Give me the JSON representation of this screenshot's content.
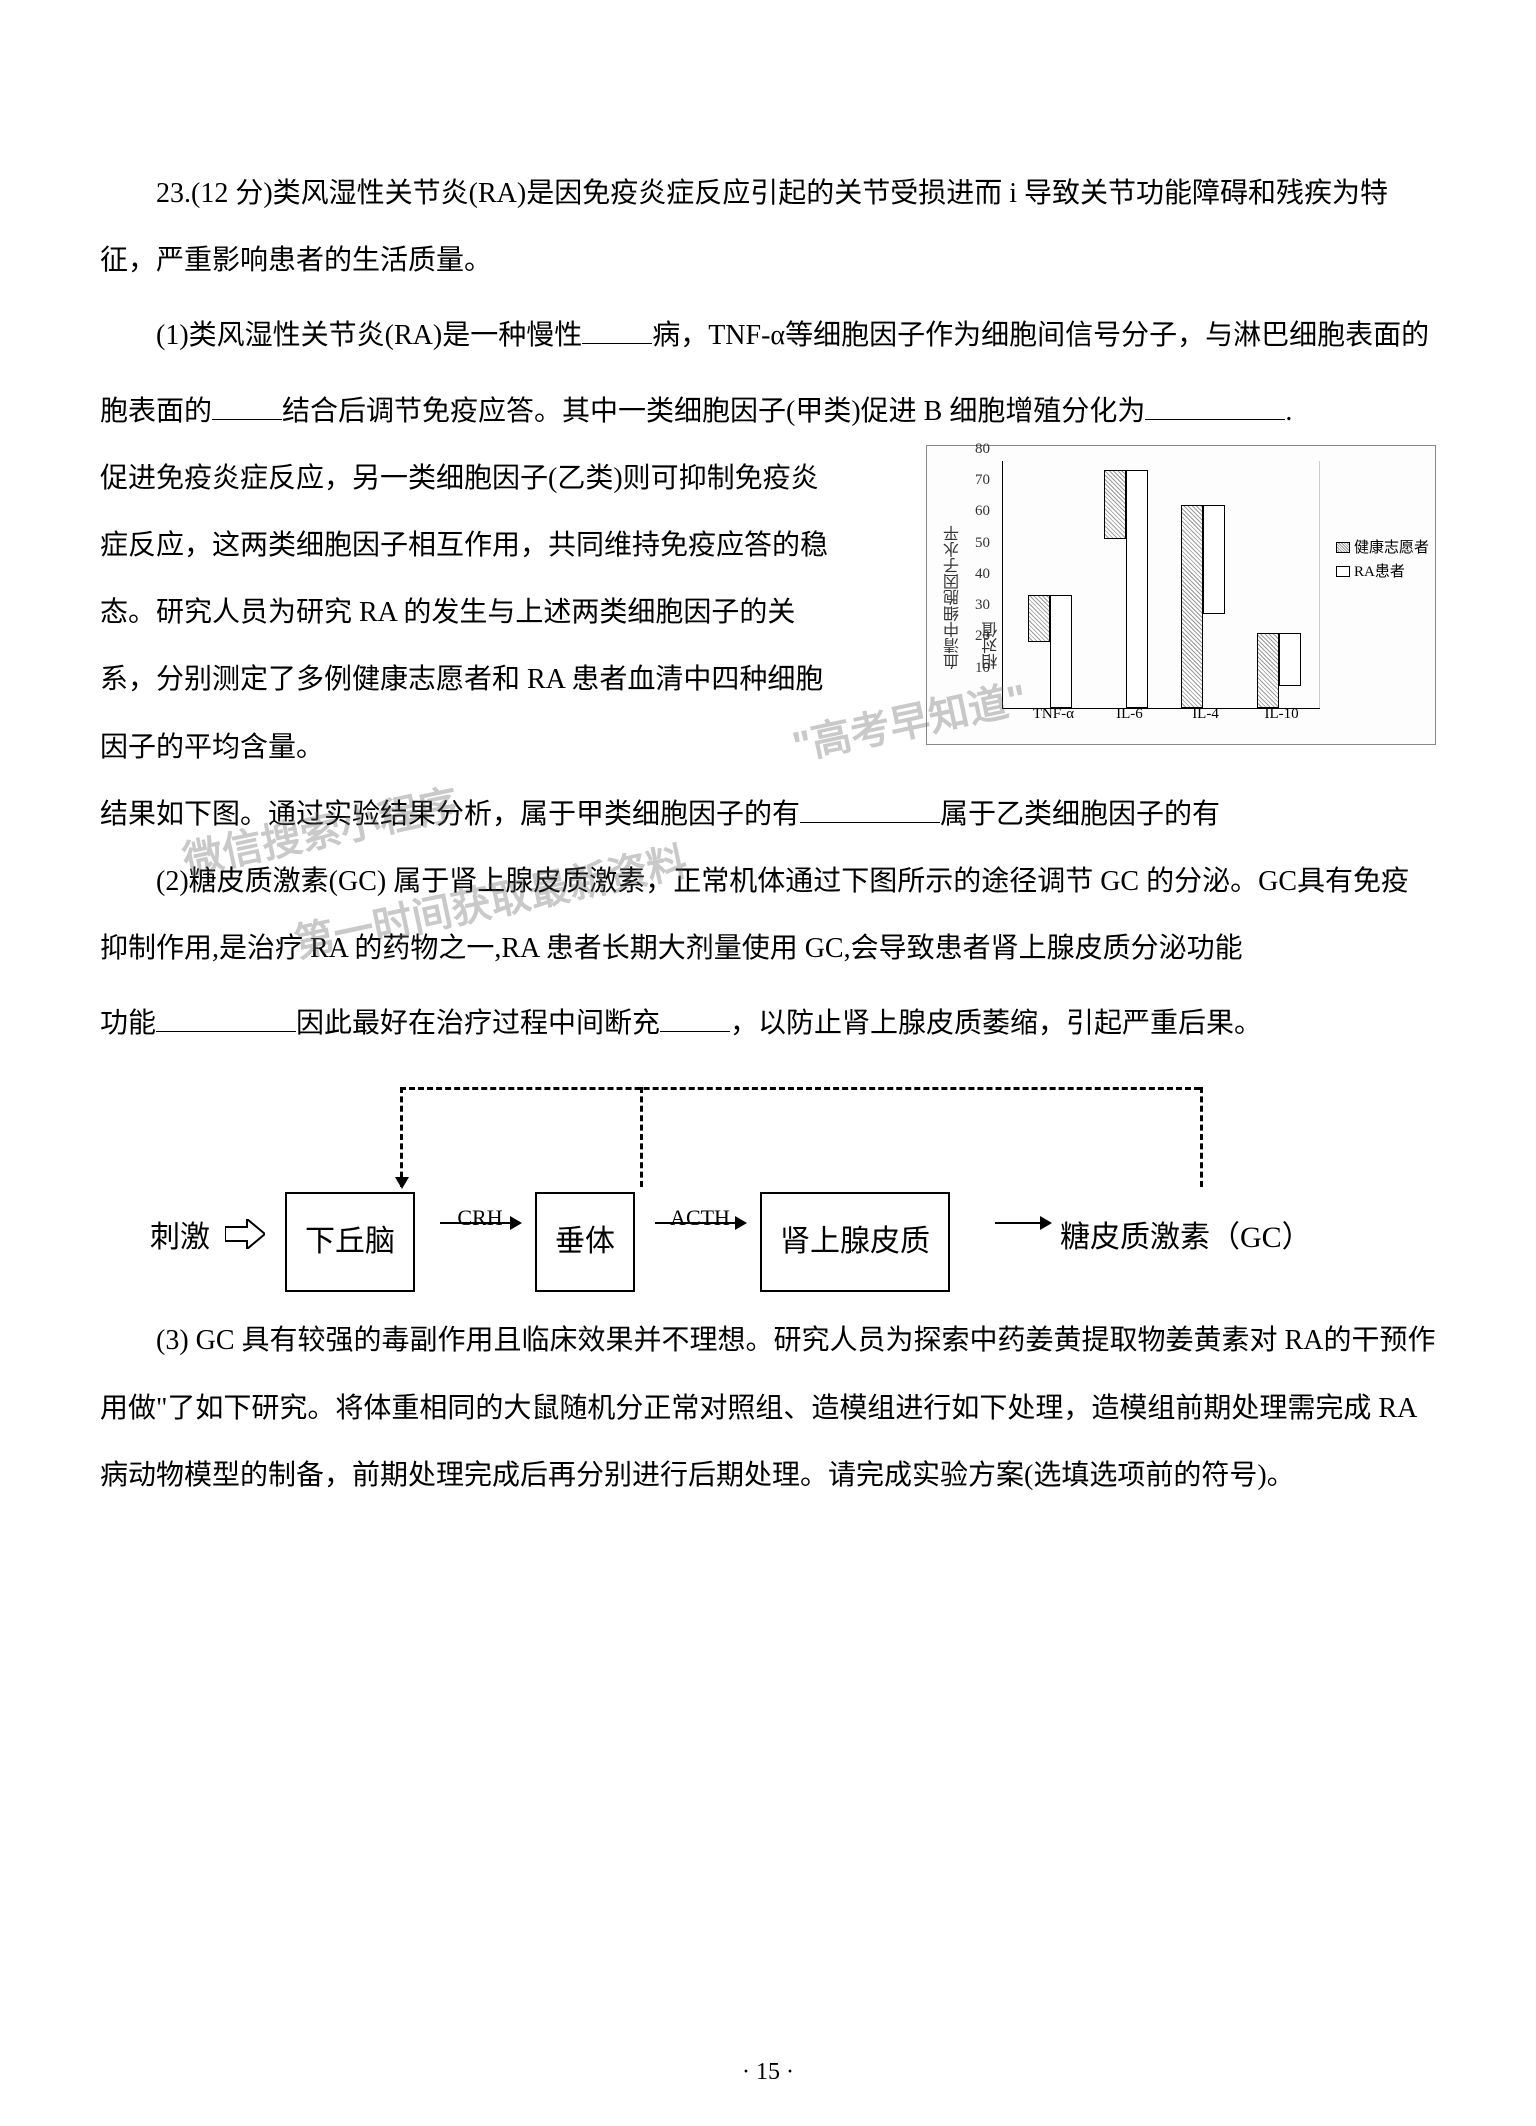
{
  "question": {
    "number": "23",
    "points": "12 分",
    "intro": "类风湿性关节炎(RA)是因免疫炎症反应引起的关节受损进而 i 导致关节功能障碍和残疾为特征，严重影响患者的生活质量。",
    "part1_a": "(1)类风湿性关节炎(RA)是一种慢性",
    "part1_b": "病，TNF-α等细胞因子作为细胞间信号分子，与淋巴细胞表面的",
    "part1_c": "结合后调节免疫应答。其中一类细胞因子(甲类)促进 B 细胞增殖分化为",
    "part1_d": "促进免疫炎症反应，另一类细胞因子(乙类)则可抑制免疫炎症反应，这两类细胞因子相互作用，共同维持免疫应答的稳态。研究人员为研究 RA 的发生与上述两类细胞因子的关系，分别测定了多例健康志愿者和 RA 患者血清中四种细胞因子的平均含量。",
    "part1_e": "结果如下图。通过实验结果分析，属于甲类细胞因子的有",
    "part1_f": "属于乙类细胞因子的有",
    "part2_a": "(2)糖皮质激素(GC) 属于肾上腺皮质激素，正常机体通过下图所示的途径调节 GC 的分泌。GC具有免疫抑制作用,是治疗 RA 的药物之一,RA 患者长期大剂量使用 GC,会导致患者肾上腺皮质分泌功能",
    "part2_b": "因此最好在治疗过程中间断充",
    "part2_c": "，以防止肾上腺皮质萎缩，引起严重后果。",
    "part3": "(3) GC 具有较强的毒副作用且临床效果并不理想。研究人员为探索中药姜黄提取物姜黄素对 RA的干预作用做\"了如下研究。将体重相同的大鼠随机分正常对照组、造模组进行如下处理，造模组前期处理需完成 RA 病动物模型的制备，前期处理完成后再分别进行后期处理。请完成实验方案(选填选项前的符号)。"
  },
  "chart": {
    "y_label": "血清中细胞因子水平相对值",
    "y_max": 80,
    "y_ticks": [
      10,
      20,
      30,
      40,
      50,
      60,
      70,
      80
    ],
    "categories": [
      "TNF-α",
      "IL-6",
      "IL-4",
      "IL-10"
    ],
    "series": [
      {
        "name": "健康志愿者",
        "pattern": "patterned",
        "values": [
          15,
          22,
          65,
          24
        ]
      },
      {
        "name": "RA患者",
        "pattern": "white",
        "values": [
          36,
          76,
          35,
          17
        ]
      }
    ],
    "group_positions_pct": [
      8,
      32,
      56,
      80
    ]
  },
  "flowchart": {
    "stimulus": "刺激",
    "nodes": [
      "下丘脑",
      "垂体",
      "肾上腺皮质"
    ],
    "output": "糖皮质激素（GC）",
    "edge_labels": [
      "CRH",
      "ACTH"
    ]
  },
  "watermarks": {
    "w1": "\"高考早知道\"",
    "w2": "微信搜索小程序",
    "w3": "第一时间获取最新资料"
  },
  "page_number": "· 15 ·"
}
